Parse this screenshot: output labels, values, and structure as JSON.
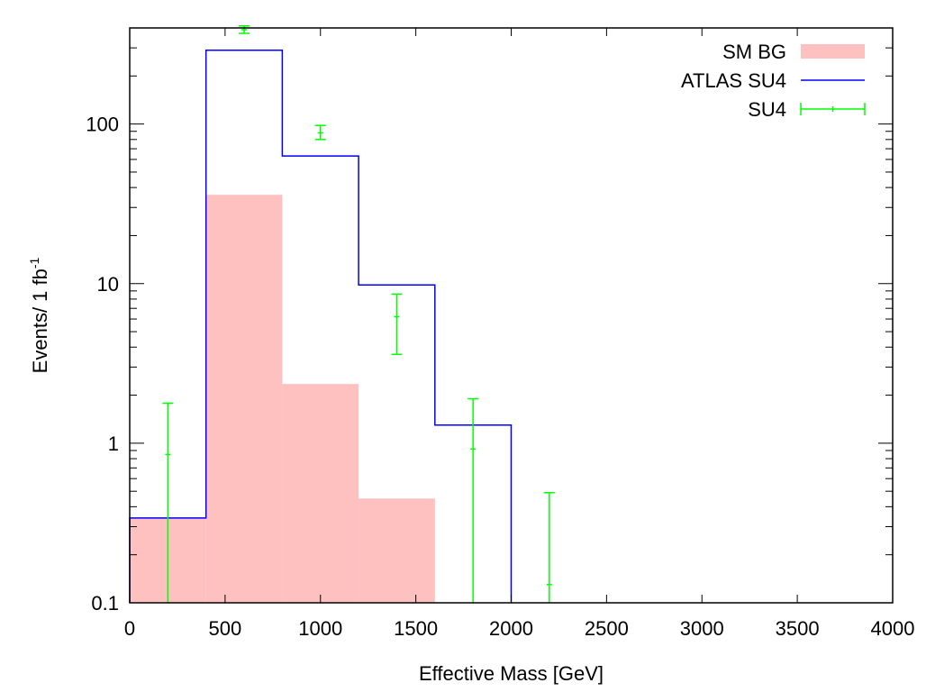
{
  "chart_data": {
    "type": "bar",
    "xlabel": "Effective Mass [GeV]",
    "ylabel": {
      "main": "Events/ 1 fb",
      "sup": "-1"
    },
    "xlim": [
      0,
      4000
    ],
    "ylim": [
      0.1,
      400
    ],
    "yscale": "log",
    "x_ticks": [
      "0",
      "500",
      "1000",
      "1500",
      "2000",
      "2500",
      "3000",
      "3500",
      "4000"
    ],
    "y_ticks": [
      "0.1",
      "1",
      "10",
      "100"
    ],
    "legend_position": "top-right",
    "series": [
      {
        "name": "SM BG",
        "style": "filled-histogram",
        "color": "#ffc0c0",
        "bins": [
          {
            "x0": 0,
            "x1": 400,
            "y": 0.34
          },
          {
            "x0": 400,
            "x1": 800,
            "y": 36
          },
          {
            "x0": 800,
            "x1": 1200,
            "y": 2.35
          },
          {
            "x0": 1200,
            "x1": 1600,
            "y": 0.45
          }
        ]
      },
      {
        "name": "ATLAS SU4",
        "style": "step",
        "color": "#0000ff",
        "bins": [
          {
            "x0": 0,
            "x1": 400,
            "y": 0.34
          },
          {
            "x0": 400,
            "x1": 800,
            "y": 290
          },
          {
            "x0": 800,
            "x1": 1200,
            "y": 63
          },
          {
            "x0": 1200,
            "x1": 1600,
            "y": 9.8
          },
          {
            "x0": 1600,
            "x1": 2000,
            "y": 1.3
          }
        ]
      },
      {
        "name": "SU4",
        "style": "errorbars",
        "color": "#00ff00",
        "points": [
          {
            "x": 200,
            "y": 0.85,
            "ylow": 0.1,
            "yhigh": 1.78
          },
          {
            "x": 600,
            "y": 390,
            "ylow": 370,
            "yhigh": 412
          },
          {
            "x": 1000,
            "y": 88,
            "ylow": 80,
            "yhigh": 98
          },
          {
            "x": 1400,
            "y": 6.2,
            "ylow": 3.6,
            "yhigh": 8.6
          },
          {
            "x": 1800,
            "y": 0.92,
            "ylow": 0.1,
            "yhigh": 1.9
          },
          {
            "x": 2200,
            "y": 0.13,
            "ylow": 0.1,
            "yhigh": 0.49
          }
        ]
      }
    ]
  }
}
